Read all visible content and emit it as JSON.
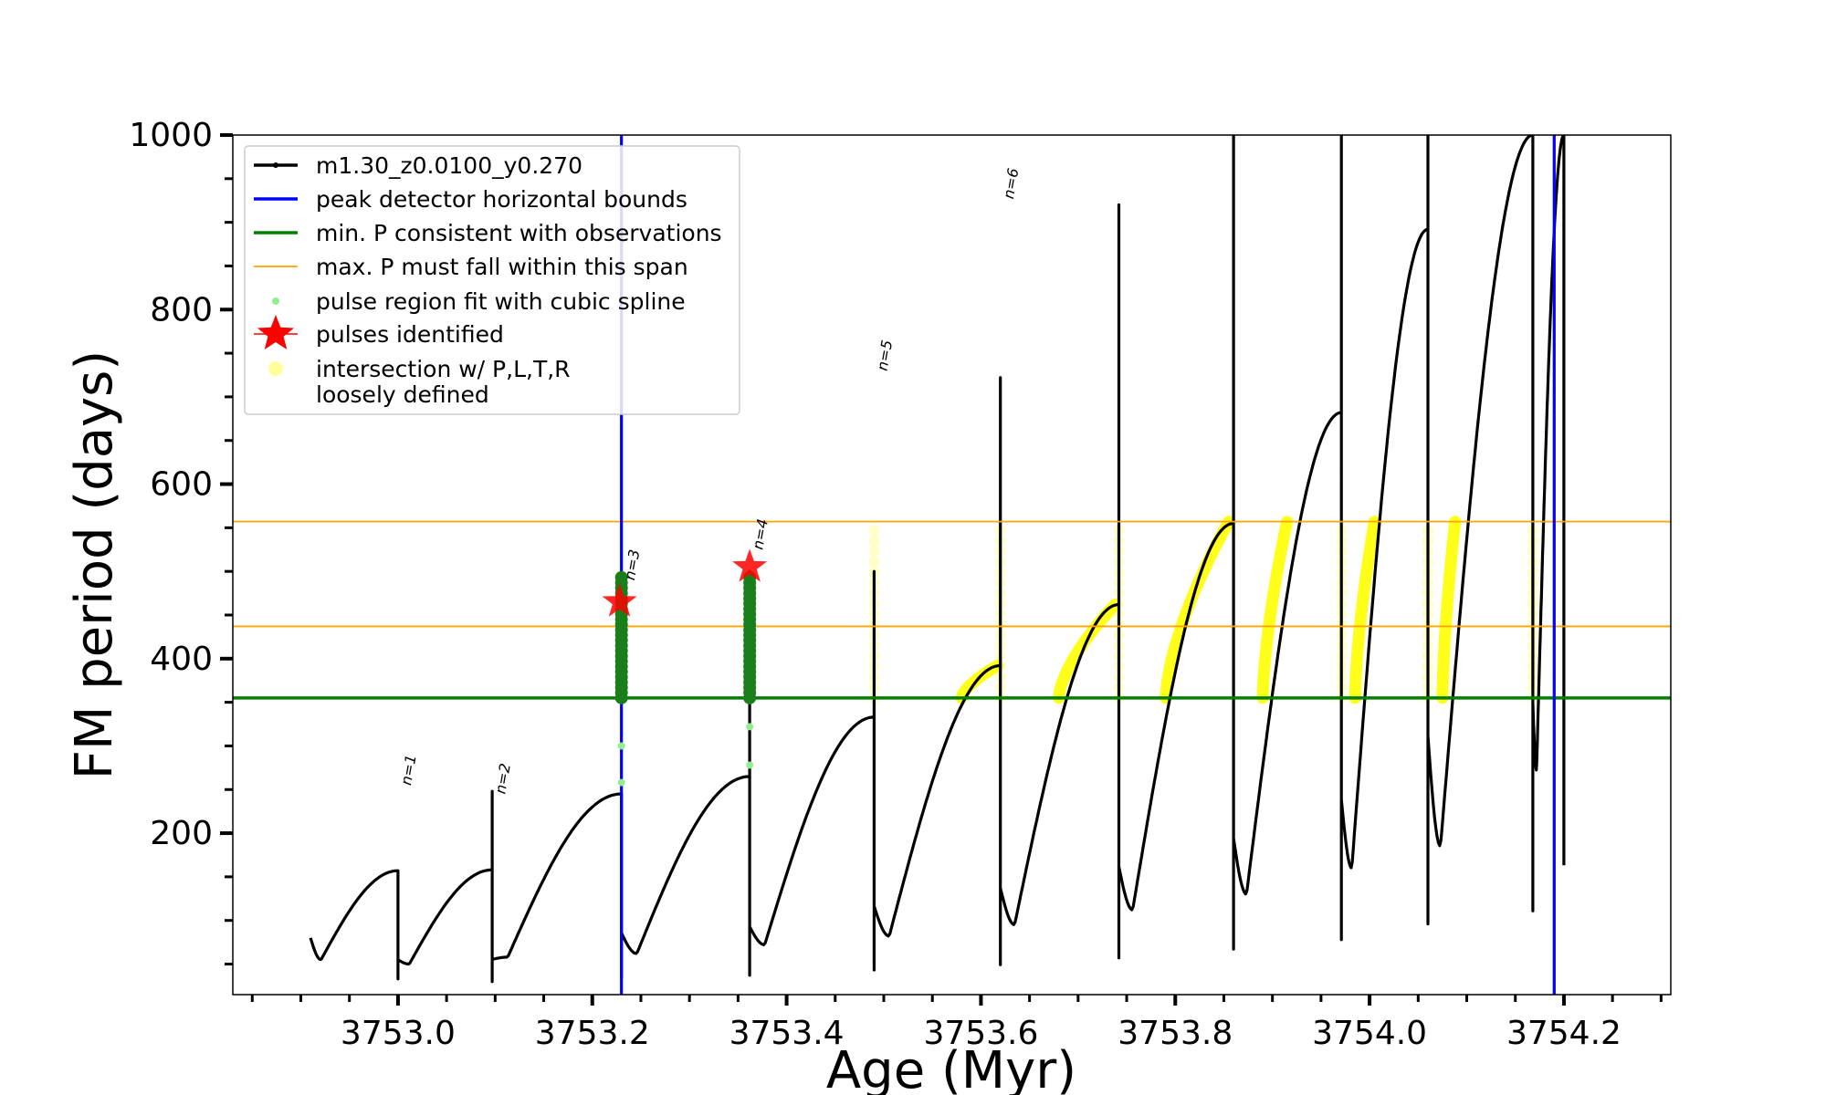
{
  "chart_data": {
    "type": "line",
    "xlabel": "Age (Myr)",
    "ylabel": "FM period (days)",
    "xlim": [
      3752.83,
      3754.31
    ],
    "ylim": [
      15,
      1000
    ],
    "x_ticks": [
      3753.0,
      3753.2,
      3753.4,
      3753.6,
      3753.8,
      3754.0,
      3754.2
    ],
    "x_tick_labels": [
      "3753.0",
      "3753.2",
      "3753.4",
      "3753.6",
      "3753.8",
      "3754.0",
      "3754.2"
    ],
    "x_minor_step": 0.05,
    "y_ticks": [
      200,
      400,
      600,
      800,
      1000
    ],
    "y_tick_labels": [
      "200",
      "400",
      "600",
      "800",
      "1000"
    ],
    "y_minor_step": 50,
    "grid": false,
    "legend_position": "top-left",
    "legend": [
      {
        "label": "m1.30_z0.0100_y0.270",
        "style": "line-dot",
        "color": "#000000"
      },
      {
        "label": "peak detector horizontal bounds",
        "style": "line",
        "color": "#0000ff"
      },
      {
        "label": "min. P consistent with observations",
        "style": "line",
        "color": "#008000"
      },
      {
        "label": "max. P must fall within this span",
        "style": "line",
        "color": "#ffa500"
      },
      {
        "label": "pulse region fit with cubic spline",
        "style": "dot",
        "color": "#90ee90"
      },
      {
        "label": "pulses identified",
        "style": "star",
        "color": "#ff0000"
      },
      {
        "label": "intersection w/ P,L,T,R",
        "label2": "loosely defined",
        "style": "dot",
        "color": "#ffff99"
      }
    ],
    "series_model": {
      "name": "m1.30_z0.0100_y0.270",
      "color": "#000000",
      "segments": [
        {
          "x0": 3752.91,
          "x1": 3753.0,
          "y0": 55,
          "peak": 157,
          "min_x": 3752.912,
          "spike": 95
        },
        {
          "x0": 3753.0,
          "x1": 3753.097,
          "y0": 50,
          "peak": 158,
          "spike": 248
        },
        {
          "x0": 3753.097,
          "x1": 3753.23,
          "y0": 58,
          "peak": 245,
          "spike": 238
        },
        {
          "x0": 3753.23,
          "x1": 3753.362,
          "y0": 62,
          "peak": 265,
          "spike": 500
        },
        {
          "x0": 3753.362,
          "x1": 3753.49,
          "y0": 72,
          "peak": 333,
          "spike": 500
        },
        {
          "x0": 3753.49,
          "x1": 3753.62,
          "y0": 82,
          "peak": 392,
          "spike": 722
        },
        {
          "x0": 3753.62,
          "x1": 3753.742,
          "y0": 95,
          "peak": 462,
          "spike": 920
        },
        {
          "x0": 3753.742,
          "x1": 3753.86,
          "y0": 112,
          "peak": 555,
          "spike": 1000
        },
        {
          "x0": 3753.86,
          "x1": 3753.971,
          "y0": 130,
          "peak": 682,
          "spike": 1000
        },
        {
          "x0": 3753.971,
          "x1": 3754.06,
          "y0": 160,
          "peak": 892,
          "spike": 1000
        },
        {
          "x0": 3754.06,
          "x1": 3754.168,
          "y0": 185,
          "peak": 1000,
          "spike": 1000
        },
        {
          "x0": 3754.168,
          "x1": 3754.2,
          "y0": 272,
          "peak": 1000,
          "spike": 1000
        }
      ]
    },
    "vertical_lines": [
      {
        "name": "peak-bound-left",
        "x": 3753.23,
        "color": "#0000ff"
      },
      {
        "name": "peak-bound-right",
        "x": 3754.19,
        "color": "#0000ff"
      }
    ],
    "horizontal_lines": [
      {
        "name": "min-period-line",
        "y": 355,
        "color": "#008000"
      },
      {
        "name": "max-period-upper",
        "y": 557,
        "color": "#ffa500"
      },
      {
        "name": "max-period-lower",
        "y": 437,
        "color": "#ffa500"
      }
    ],
    "pulse_region_fits": [
      {
        "x": 3753.23,
        "y_from": 355,
        "y_to": 495,
        "extra_y": [
          300,
          258
        ]
      },
      {
        "x": 3753.362,
        "y_from": 355,
        "y_to": 495,
        "extra_y": [
          322,
          278
        ]
      }
    ],
    "pulses_identified": [
      {
        "x": 3753.228,
        "y": 465
      },
      {
        "x": 3753.362,
        "y": 505
      }
    ],
    "peak_labels": [
      {
        "text": "n=1",
        "x": 3753.0,
        "y": 250
      },
      {
        "text": "n=2",
        "x": 3753.097,
        "y": 240
      },
      {
        "text": "n=3",
        "x": 3753.23,
        "y": 485
      },
      {
        "text": "n=4",
        "x": 3753.362,
        "y": 520
      },
      {
        "text": "n=5",
        "x": 3753.49,
        "y": 725
      },
      {
        "text": "n=6",
        "x": 3753.62,
        "y": 922
      }
    ],
    "intersection_vertical": [
      3753.49,
      3753.62,
      3753.742,
      3753.971,
      3754.06,
      3754.168
    ],
    "intersection_arcs": [
      {
        "x0": 3753.58,
        "x1": 3753.617,
        "y_top": 392
      },
      {
        "x0": 3753.68,
        "x1": 3753.738,
        "y_top": 462
      },
      {
        "x0": 3753.79,
        "x1": 3753.855,
        "y_top": 557
      },
      {
        "x0": 3753.89,
        "x1": 3753.915,
        "y_top": 557
      },
      {
        "x0": 3753.985,
        "x1": 3754.005,
        "y_top": 557
      },
      {
        "x0": 3754.075,
        "x1": 3754.088,
        "y_top": 557
      }
    ]
  }
}
